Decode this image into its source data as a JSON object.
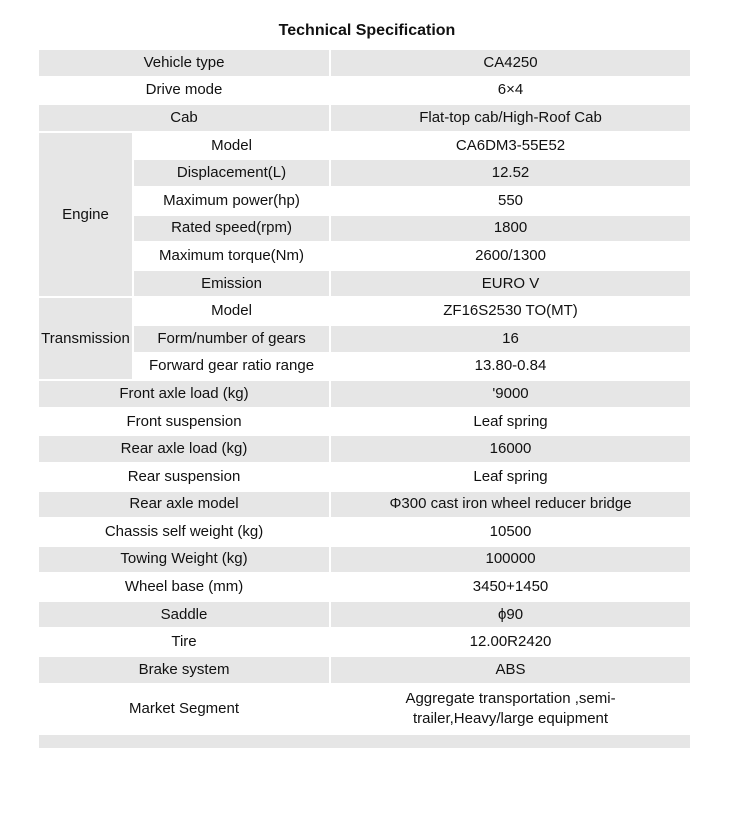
{
  "title": "Technical Specification",
  "rows": [
    {
      "label": "Vehicle type",
      "value": "CA4250"
    },
    {
      "label": "Drive mode",
      "value": "6×4"
    },
    {
      "label": "Cab",
      "value": "Flat-top cab/High-Roof Cab"
    },
    {
      "group": "Engine",
      "items": [
        {
          "label": "Model",
          "value": "CA6DM3-55E52"
        },
        {
          "label": "Displacement(L)",
          "value": "12.52"
        },
        {
          "label": "Maximum power(hp)",
          "value": "550"
        },
        {
          "label": "Rated speed(rpm)",
          "value": "1800"
        },
        {
          "label": "Maximum torque(Nm)",
          "value": "2600/1300"
        },
        {
          "label": "Emission",
          "value": "EURO V"
        }
      ]
    },
    {
      "group": "Transmission",
      "items": [
        {
          "label": "Model",
          "value": "ZF16S2530 TO(MT)"
        },
        {
          "label": "Form/number of gears",
          "value": "16"
        },
        {
          "label": "Forward gear ratio range",
          "value": "13.80-0.84"
        }
      ]
    },
    {
      "label": "Front axle load (kg)",
      "value": "'9000"
    },
    {
      "label": "Front suspension",
      "value": "Leaf spring"
    },
    {
      "label": "Rear axle load (kg)",
      "value": "16000"
    },
    {
      "label": "Rear suspension",
      "value": "Leaf spring"
    },
    {
      "label": "Rear axle model",
      "value": "Φ300 cast iron wheel reducer bridge"
    },
    {
      "label": "Chassis self weight (kg)",
      "value": "10500"
    },
    {
      "label": "Towing Weight (kg)",
      "value": "100000"
    },
    {
      "label": "Wheel base (mm)",
      "value": "3450+1450"
    },
    {
      "label": "Saddle",
      "value": "ϕ90"
    },
    {
      "label": "Tire",
      "value": "12.00R2420"
    },
    {
      "label": "Brake system",
      "value": "ABS"
    },
    {
      "label": "Market Segment",
      "value": "Aggregate transportation ,semi-trailer,Heavy/large equipment"
    }
  ]
}
